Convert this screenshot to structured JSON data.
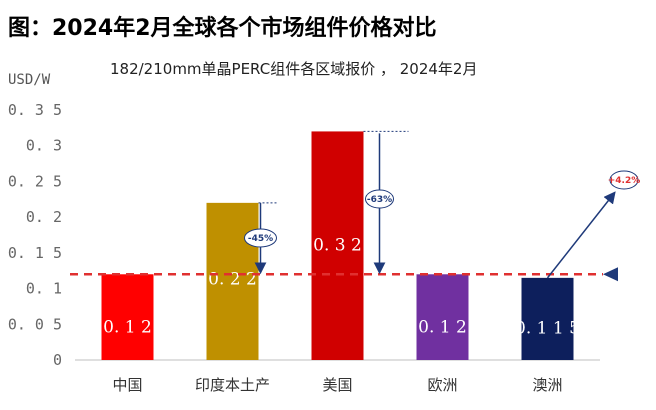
{
  "chart_data": {
    "type": "bar",
    "title": "图：2024年2月全球各个市场组件价格对比",
    "subtitle": "182/210mm单晶PERC组件各区域报价 ， 2024年2月",
    "ylabel": "USD/W",
    "ylim": [
      0,
      0.35
    ],
    "yticks": [
      "0",
      "0.05",
      "0.1",
      "0.15",
      "0.2",
      "0.25",
      "0.3",
      "0.35"
    ],
    "categories": [
      "中国",
      "印度本土产",
      "美国",
      "欧洲",
      "澳洲"
    ],
    "values": [
      0.12,
      0.22,
      0.32,
      0.12,
      0.115
    ],
    "data_labels": [
      "0.12",
      "0.22",
      "0.32",
      "0.12",
      "0.115"
    ],
    "colors": [
      "#FF0000",
      "#BF9000",
      "#D00000",
      "#7030A0",
      "#0D1F5C"
    ],
    "reference_line": {
      "value": 0.12,
      "color": "#E03030"
    },
    "annotations": [
      {
        "category": "印度本土产",
        "text": "-45%",
        "color": "#1F3A7A"
      },
      {
        "category": "美国",
        "text": "-63%",
        "color": "#1F3A7A"
      },
      {
        "category": "澳洲",
        "text": "+4.2%",
        "color": "#E03030"
      }
    ]
  }
}
